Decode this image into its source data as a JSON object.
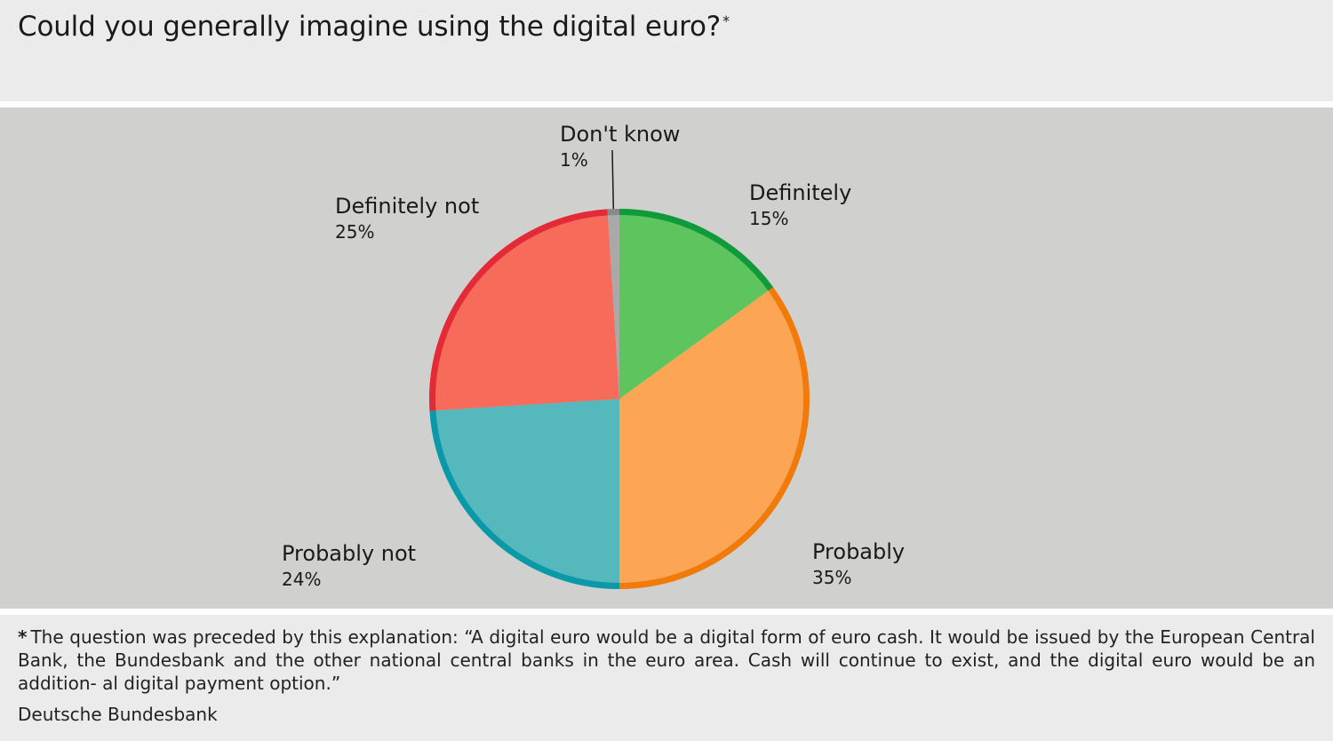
{
  "title": "Could you generally imagine using the digital euro?",
  "title_mark": "*",
  "footnote_mark": "*",
  "footnote_text": "The question was preceded by this explanation: “A digital euro would be a digital form of euro cash. It would be issued by the European Central Bank, the Bundesbank and the other national central banks in the euro area. Cash will continue to exist, and the digital euro would be an addition- al digital payment option.”",
  "source": "Deutsche Bundesbank",
  "chart_data": {
    "type": "pie",
    "title": "Could you generally imagine using the digital euro?",
    "start": "top, clockwise",
    "slices": [
      {
        "label": "Definitely",
        "value": 15,
        "value_label": "15%",
        "fill": "#5ec45e",
        "edge": "#0f9a3c"
      },
      {
        "label": "Probably",
        "value": 35,
        "value_label": "35%",
        "fill": "#fca655",
        "edge": "#f07a0a"
      },
      {
        "label": "Probably not",
        "value": 24,
        "value_label": "24%",
        "fill": "#54b8bd",
        "edge": "#0a99a8"
      },
      {
        "label": "Definitely not",
        "value": 25,
        "value_label": "25%",
        "fill": "#f76b5b",
        "edge": "#e32b37"
      },
      {
        "label": "Don't know",
        "value": 1,
        "value_label": "1%",
        "fill": "#a9a9a9",
        "edge": "#8a8a8a"
      }
    ]
  }
}
